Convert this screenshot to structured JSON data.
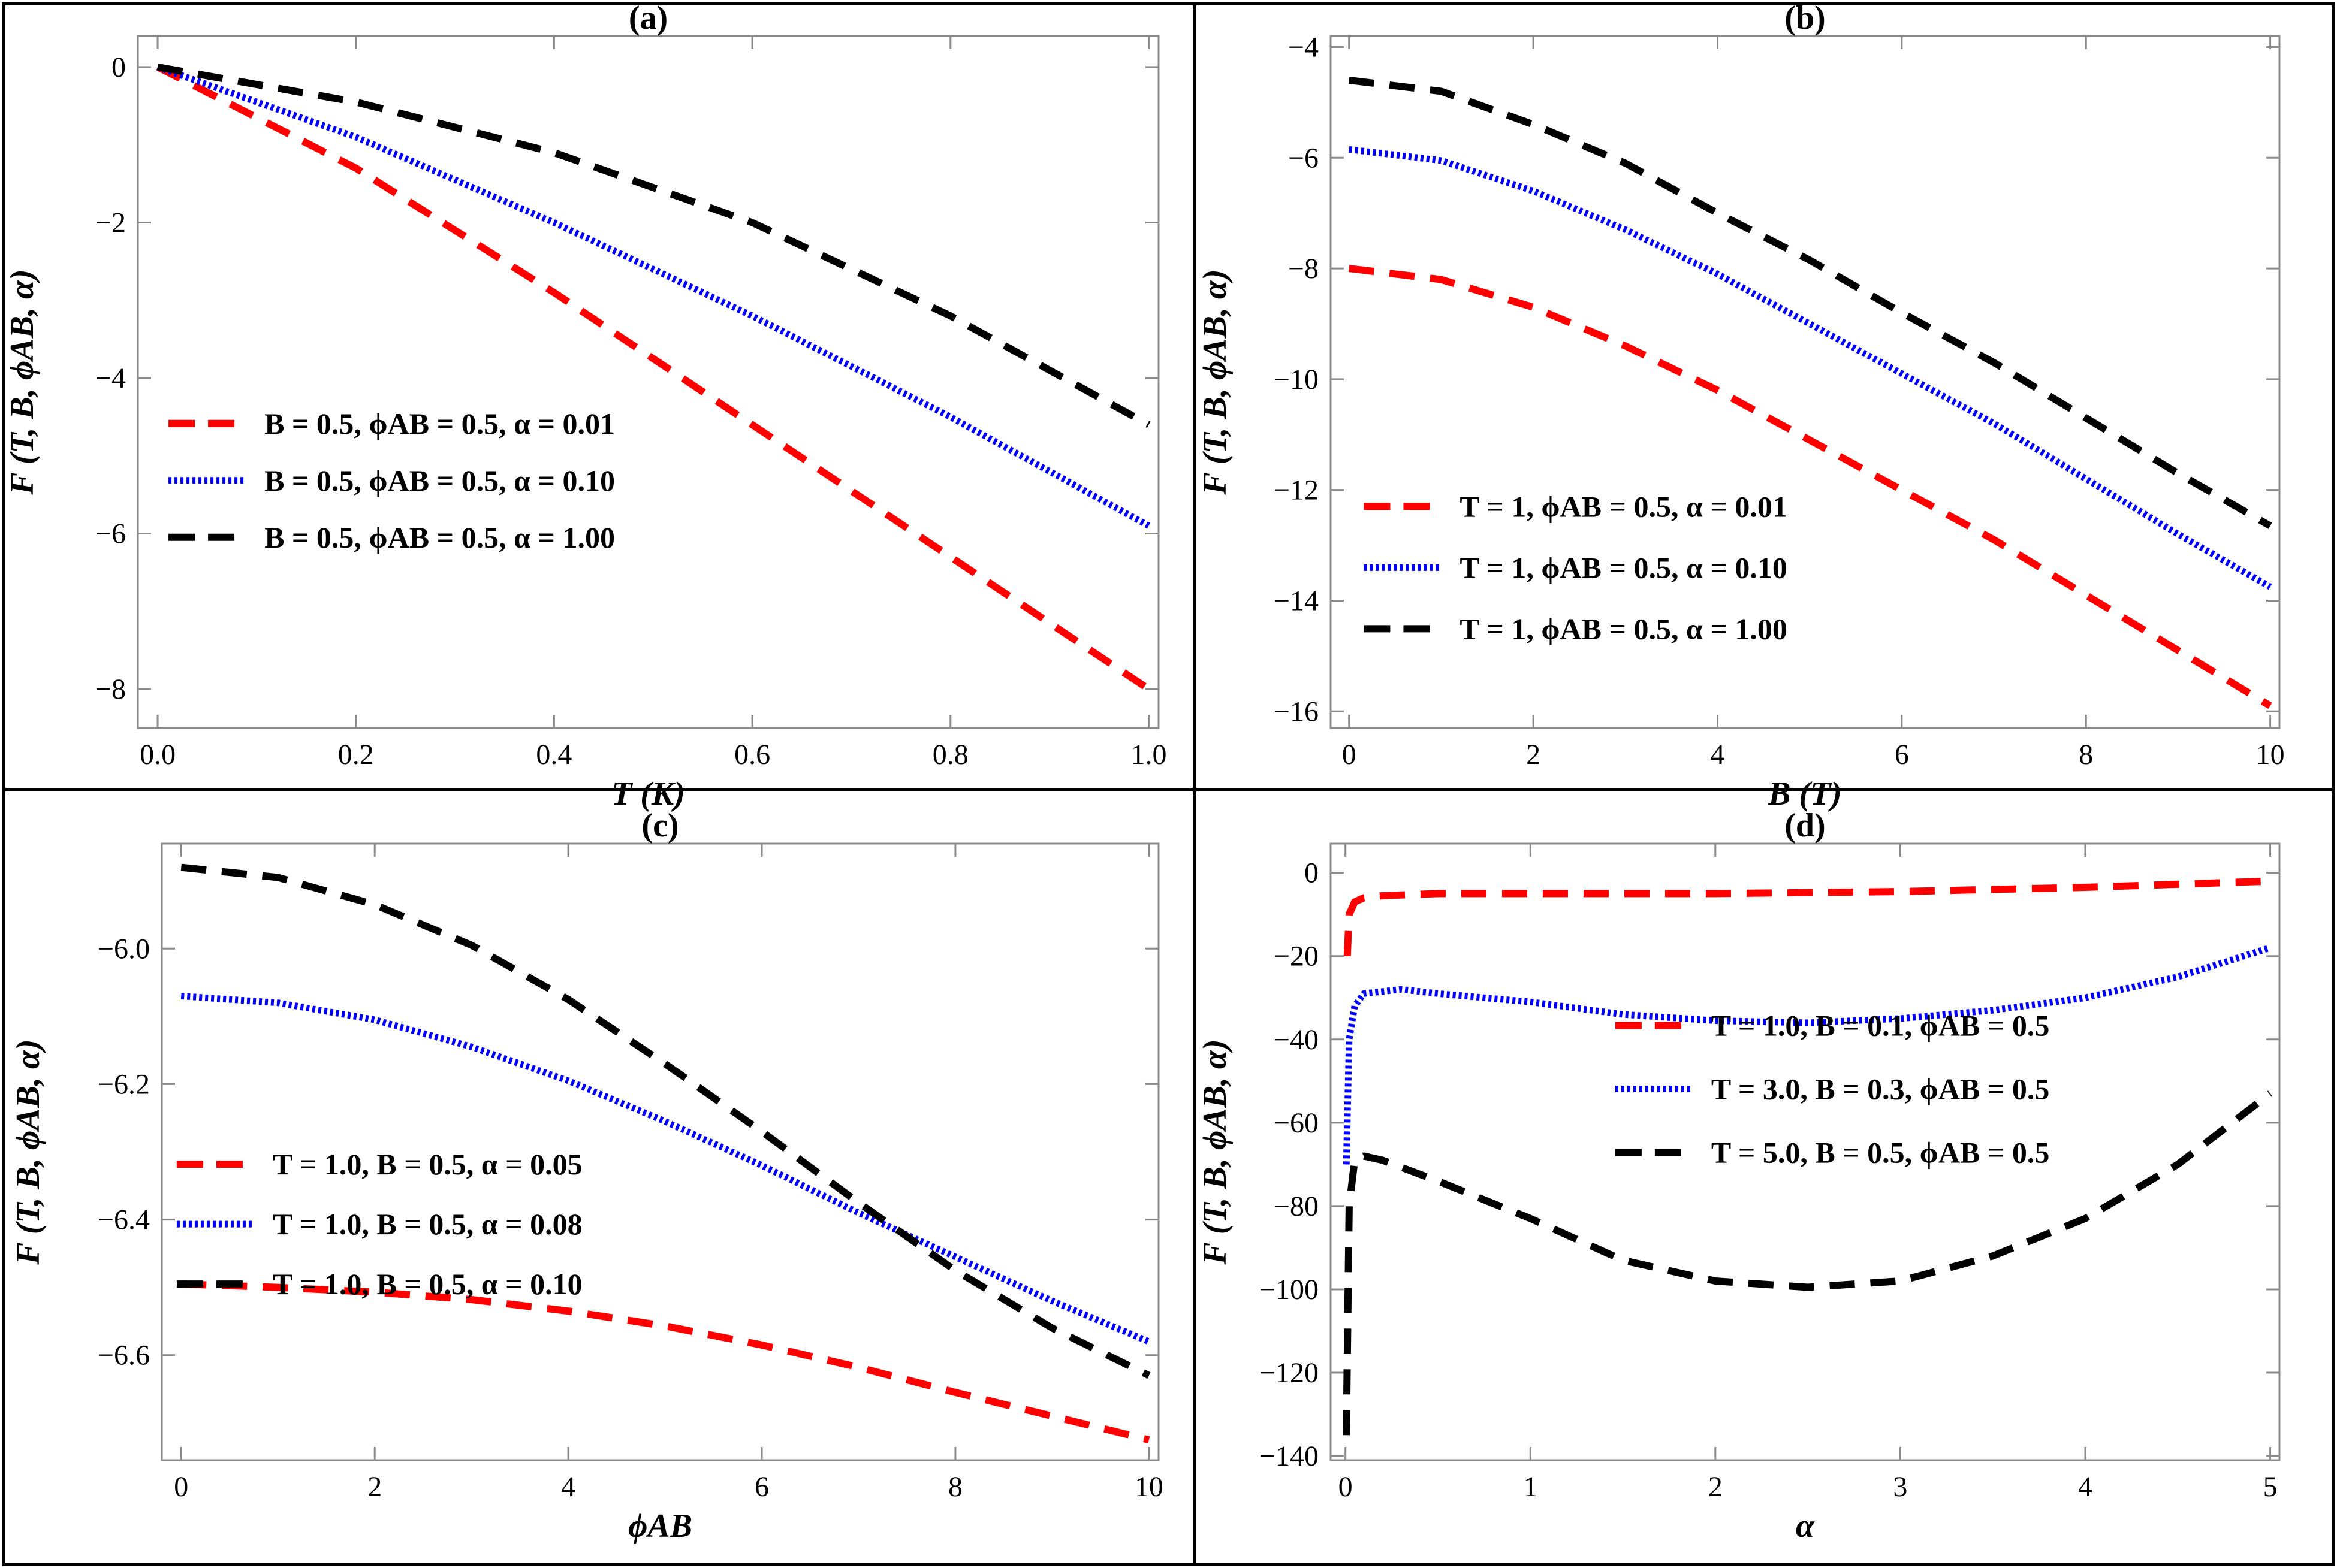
{
  "colors": {
    "red": "#ff0000",
    "blue": "#0000ff",
    "black": "#000000"
  },
  "chart_data": [
    {
      "type": "line",
      "title": "(a)",
      "xlabel": "T (K)",
      "ylabel": "F (T, B, ϕAB, α)",
      "xlim": [
        -0.02,
        1.01
      ],
      "ylim": [
        -8.5,
        0.4
      ],
      "xticks": [
        0.0,
        0.2,
        0.4,
        0.6,
        0.8,
        1.0
      ],
      "xtick_labels": [
        "0.0",
        "0.2",
        "0.4",
        "0.6",
        "0.8",
        "1.0"
      ],
      "yticks": [
        0,
        -2,
        -4,
        -6,
        -8
      ],
      "ytick_labels": [
        "0",
        "−2",
        "−4",
        "−6",
        "−8"
      ],
      "legend_position": "lower-left",
      "series": [
        {
          "name": "B = 0.5, ϕAB = 0.5, α = 0.01",
          "color": "red",
          "style": "dashed",
          "x": [
            0,
            0.2,
            0.4,
            0.6,
            0.8,
            1.0
          ],
          "y": [
            0,
            -1.3,
            -2.9,
            -4.6,
            -6.3,
            -8.0
          ]
        },
        {
          "name": "B = 0.5, ϕAB = 0.5, α = 0.10",
          "color": "blue",
          "style": "dotted",
          "x": [
            0,
            0.2,
            0.4,
            0.6,
            0.8,
            1.0
          ],
          "y": [
            0,
            -0.9,
            -2.0,
            -3.2,
            -4.5,
            -5.9
          ]
        },
        {
          "name": "B = 0.5, ϕAB = 0.5, α = 1.00",
          "color": "black",
          "style": "dashed",
          "x": [
            0,
            0.2,
            0.4,
            0.6,
            0.8,
            1.0
          ],
          "y": [
            0,
            -0.45,
            -1.1,
            -2.0,
            -3.2,
            -4.6
          ]
        }
      ]
    },
    {
      "type": "line",
      "title": "(b)",
      "xlabel": "B (T)",
      "ylabel": "F (T, B, ϕAB, α)",
      "xlim": [
        -0.2,
        10.1
      ],
      "ylim": [
        -16.3,
        -3.8
      ],
      "xticks": [
        0,
        2,
        4,
        6,
        8,
        10
      ],
      "xtick_labels": [
        "0",
        "2",
        "4",
        "6",
        "8",
        "10"
      ],
      "yticks": [
        -4,
        -6,
        -8,
        -10,
        -12,
        -14,
        -16
      ],
      "ytick_labels": [
        "−4",
        "−6",
        "−8",
        "−10",
        "−12",
        "−14",
        "−16"
      ],
      "legend_position": "lower-left",
      "series": [
        {
          "name": "T = 1, ϕAB = 0.5, α = 0.01",
          "color": "red",
          "style": "dashed",
          "x": [
            0,
            1,
            2,
            3,
            4,
            5,
            6,
            7,
            8,
            9,
            10
          ],
          "y": [
            -8.0,
            -8.2,
            -8.7,
            -9.4,
            -10.2,
            -11.1,
            -12.0,
            -12.9,
            -13.9,
            -14.9,
            -15.9
          ]
        },
        {
          "name": "T = 1, ϕAB = 0.5, α = 0.10",
          "color": "blue",
          "style": "dotted",
          "x": [
            0,
            1,
            2,
            3,
            4,
            5,
            6,
            7,
            8,
            9,
            10
          ],
          "y": [
            -5.85,
            -6.05,
            -6.6,
            -7.3,
            -8.1,
            -9.0,
            -9.9,
            -10.8,
            -11.8,
            -12.8,
            -13.75
          ]
        },
        {
          "name": "T = 1, ϕAB = 0.5, α = 1.00",
          "color": "black",
          "style": "dashed",
          "x": [
            0,
            1,
            2,
            3,
            4,
            5,
            6,
            7,
            8,
            9,
            10
          ],
          "y": [
            -4.6,
            -4.8,
            -5.4,
            -6.1,
            -7.0,
            -7.85,
            -8.8,
            -9.7,
            -10.7,
            -11.7,
            -12.65
          ]
        }
      ]
    },
    {
      "type": "line",
      "title": "(c)",
      "xlabel": "ϕAB",
      "ylabel": "F (T, B, ϕAB, α)",
      "xlim": [
        -0.2,
        10.1
      ],
      "ylim": [
        -6.755,
        -5.845
      ],
      "xticks": [
        0,
        2,
        4,
        6,
        8,
        10
      ],
      "xtick_labels": [
        "0",
        "2",
        "4",
        "6",
        "8",
        "10"
      ],
      "yticks": [
        -6.0,
        -6.2,
        -6.4,
        -6.6
      ],
      "ytick_labels": [
        "−6.0",
        "−6.2",
        "−6.4",
        "−6.6"
      ],
      "legend_position": "lower-left",
      "series": [
        {
          "name": "T = 1.0, B = 0.5, α = 0.05",
          "color": "red",
          "style": "dashed",
          "x": [
            0,
            1,
            2,
            3,
            4,
            5,
            6,
            7,
            8,
            9,
            10
          ],
          "y": [
            -6.495,
            -6.5,
            -6.507,
            -6.518,
            -6.535,
            -6.557,
            -6.585,
            -6.618,
            -6.655,
            -6.69,
            -6.725
          ]
        },
        {
          "name": "T = 1.0, B = 0.5, α = 0.08",
          "color": "blue",
          "style": "dotted",
          "x": [
            0,
            1,
            2,
            3,
            4,
            5,
            6,
            7,
            8,
            9,
            10
          ],
          "y": [
            -6.07,
            -6.08,
            -6.105,
            -6.145,
            -6.195,
            -6.255,
            -6.32,
            -6.39,
            -6.455,
            -6.52,
            -6.58
          ]
        },
        {
          "name": "T = 1.0, B = 0.5, α = 0.10",
          "color": "black",
          "style": "dashed",
          "x": [
            0,
            1,
            2,
            3,
            4,
            5,
            6,
            7,
            8,
            9,
            10
          ],
          "y": [
            -5.88,
            -5.895,
            -5.935,
            -5.995,
            -6.075,
            -6.17,
            -6.27,
            -6.375,
            -6.475,
            -6.56,
            -6.63
          ]
        }
      ]
    },
    {
      "type": "line",
      "title": "(d)",
      "xlabel": "α",
      "ylabel": "F (T, B, ϕAB, α)",
      "xlim": [
        -0.08,
        5.05
      ],
      "ylim": [
        -141,
        7
      ],
      "xticks": [
        0,
        1,
        2,
        3,
        4,
        5
      ],
      "xtick_labels": [
        "0",
        "1",
        "2",
        "3",
        "4",
        "5"
      ],
      "yticks": [
        0,
        -20,
        -40,
        -60,
        -80,
        -100,
        -120,
        -140
      ],
      "ytick_labels": [
        "0",
        "−20",
        "−40",
        "−60",
        "−80",
        "−100",
        "−120",
        "−140"
      ],
      "legend_position": "center-right",
      "series": [
        {
          "name": "T = 1.0, B = 0.1, ϕAB = 0.5",
          "color": "red",
          "style": "dashed",
          "x": [
            0.01,
            0.02,
            0.05,
            0.1,
            0.2,
            0.5,
            1,
            2,
            3,
            4,
            5
          ],
          "y": [
            -20,
            -10,
            -7,
            -6,
            -5.5,
            -5,
            -5,
            -5,
            -4.5,
            -3.5,
            -2
          ]
        },
        {
          "name": "T = 3.0, B = 0.3, ϕAB = 0.5",
          "color": "blue",
          "style": "dotted",
          "x": [
            0.005,
            0.02,
            0.05,
            0.1,
            0.3,
            0.5,
            1,
            1.5,
            2,
            2.5,
            3,
            3.5,
            4,
            4.5,
            5
          ],
          "y": [
            -70,
            -40,
            -32,
            -29,
            -28,
            -29,
            -31,
            -34,
            -35.5,
            -36,
            -35,
            -33,
            -30,
            -25,
            -18
          ]
        },
        {
          "name": "T = 5.0, B = 0.5, ϕAB = 0.5",
          "color": "black",
          "style": "dashed",
          "x": [
            0.005,
            0.02,
            0.05,
            0.1,
            0.2,
            0.5,
            1,
            1.5,
            2,
            2.5,
            3,
            3.5,
            4,
            4.5,
            5
          ],
          "y": [
            -135,
            -80,
            -69,
            -68,
            -69,
            -74,
            -83,
            -93,
            -98,
            -99.5,
            -98,
            -92,
            -83,
            -70,
            -53
          ]
        }
      ]
    }
  ]
}
